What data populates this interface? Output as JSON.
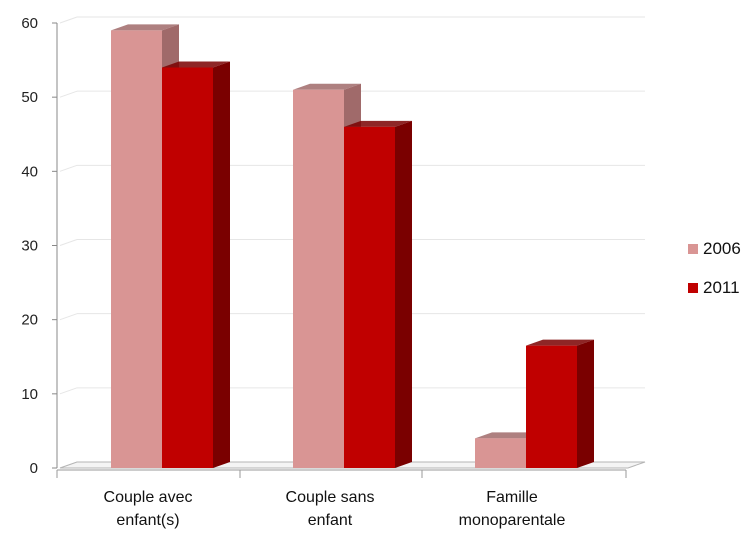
{
  "chart_data": {
    "type": "bar",
    "title": "",
    "xlabel": "",
    "ylabel": "",
    "categories": [
      [
        "Couple avec",
        "enfant(s)"
      ],
      [
        "Couple sans",
        "enfant"
      ],
      [
        "Famille",
        "monoparentale"
      ]
    ],
    "series": [
      {
        "name": "2006",
        "values": [
          59,
          51,
          4
        ],
        "color": "#d99594",
        "side_color": "#a06a6a"
      },
      {
        "name": "2011",
        "values": [
          54,
          46,
          16.5
        ],
        "color": "#c00000",
        "side_color": "#7a0000"
      }
    ],
    "ylim": [
      0,
      60
    ],
    "yticks": [
      0,
      10,
      20,
      30,
      40,
      50,
      60
    ],
    "grid": true,
    "legend_position": "right"
  }
}
